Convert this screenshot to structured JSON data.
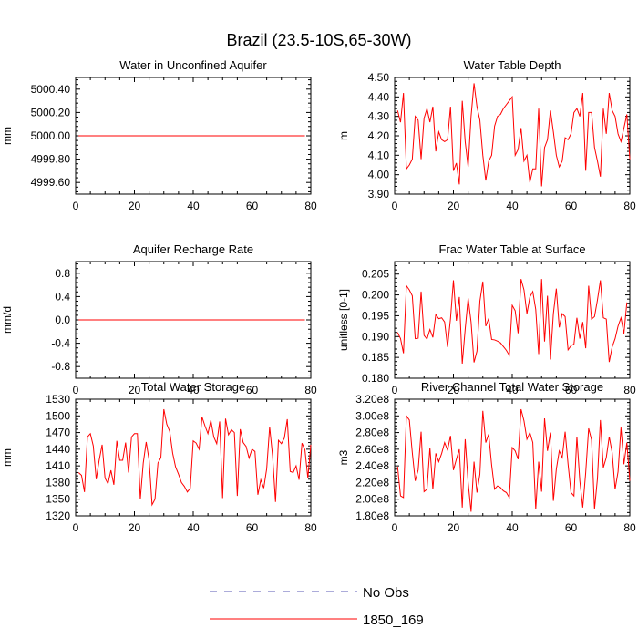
{
  "main_title": "Brazil (23.5-10S,65-30W)",
  "colors": {
    "series": "#ff0000",
    "noobs": "#5a5ab4"
  },
  "legend": {
    "no_obs": "No Obs",
    "run": "1850_169"
  },
  "chart_data": [
    {
      "type": "line",
      "title": "Water in Unconfined Aquifer",
      "ylabel": "mm",
      "xlim": [
        0,
        80
      ],
      "ylim": [
        4999.5,
        5000.5
      ],
      "xticks": [
        0,
        20,
        40,
        60,
        80
      ],
      "yticks": [
        4999.6,
        4999.8,
        5000.0,
        5000.2,
        5000.4
      ],
      "ytick_labels": [
        "4999.60",
        "4999.80",
        "5000.00",
        "5000.20",
        "5000.40"
      ],
      "series": [
        {
          "name": "1850_169",
          "x_start": 1,
          "values": [
            5000,
            5000,
            5000,
            5000,
            5000,
            5000,
            5000,
            5000,
            5000,
            5000,
            5000,
            5000,
            5000,
            5000,
            5000,
            5000,
            5000,
            5000,
            5000,
            5000,
            5000,
            5000,
            5000,
            5000,
            5000,
            5000,
            5000,
            5000,
            5000,
            5000,
            5000,
            5000,
            5000,
            5000,
            5000,
            5000,
            5000,
            5000,
            5000,
            5000,
            5000,
            5000,
            5000,
            5000,
            5000,
            5000,
            5000,
            5000,
            5000,
            5000,
            5000,
            5000,
            5000,
            5000,
            5000,
            5000,
            5000,
            5000,
            5000,
            5000,
            5000,
            5000,
            5000,
            5000,
            5000,
            5000,
            5000,
            5000,
            5000,
            5000,
            5000,
            5000,
            5000,
            5000,
            5000,
            5000,
            5000,
            5000
          ]
        }
      ]
    },
    {
      "type": "line",
      "title": "Water Table Depth",
      "ylabel": "m",
      "xlim": [
        0,
        80
      ],
      "ylim": [
        3.9,
        4.5
      ],
      "xticks": [
        0,
        20,
        40,
        60,
        80
      ],
      "yticks": [
        3.9,
        4.0,
        4.1,
        4.2,
        4.3,
        4.4,
        4.5
      ],
      "ytick_labels": [
        "3.90",
        "4.00",
        "4.10",
        "4.20",
        "4.30",
        "4.40",
        "4.50"
      ],
      "series": [
        {
          "name": "1850_169",
          "x_start": 1,
          "values": [
            4.33,
            4.27,
            4.42,
            4.03,
            4.05,
            4.08,
            4.3,
            4.28,
            4.08,
            4.29,
            4.34,
            4.27,
            4.35,
            4.12,
            4.22,
            4.18,
            4.17,
            4.18,
            4.35,
            4.02,
            4.06,
            3.95,
            4.38,
            4.17,
            4.04,
            4.3,
            4.47,
            4.35,
            4.28,
            4.1,
            3.97,
            4.07,
            4.1,
            4.25,
            4.3,
            4.31,
            4.34,
            4.36,
            4.38,
            4.4,
            4.1,
            4.13,
            4.24,
            4.07,
            4.1,
            3.96,
            4.03,
            4.03,
            4.34,
            3.94,
            4.14,
            4.18,
            4.33,
            4.22,
            4.1,
            4.04,
            4.07,
            4.19,
            4.18,
            4.21,
            4.32,
            4.34,
            4.3,
            4.42,
            4.02,
            4.32,
            4.32,
            4.14,
            4.07,
            3.99,
            4.34,
            4.21,
            4.42,
            4.33,
            4.3,
            4.21,
            4.17,
            4.24,
            4.31,
            4.08
          ]
        }
      ]
    },
    {
      "type": "line",
      "title": "Aquifer Recharge Rate",
      "ylabel": "mm/d",
      "xlim": [
        0,
        80
      ],
      "ylim": [
        -1.0,
        1.0
      ],
      "xticks": [
        0,
        20,
        40,
        60,
        80
      ],
      "yticks": [
        -0.8,
        -0.4,
        0.0,
        0.4,
        0.8
      ],
      "ytick_labels": [
        "-0.8",
        "-0.4",
        "0.0",
        "0.4",
        "0.8"
      ],
      "series": [
        {
          "name": "1850_169",
          "x_start": 1,
          "values": [
            0,
            0,
            0,
            0,
            0,
            0,
            0,
            0,
            0,
            0,
            0,
            0,
            0,
            0,
            0,
            0,
            0,
            0,
            0,
            0,
            0,
            0,
            0,
            0,
            0,
            0,
            0,
            0,
            0,
            0,
            0,
            0,
            0,
            0,
            0,
            0,
            0,
            0,
            0,
            0,
            0,
            0,
            0,
            0,
            0,
            0,
            0,
            0,
            0,
            0,
            0,
            0,
            0,
            0,
            0,
            0,
            0,
            0,
            0,
            0,
            0,
            0,
            0,
            0,
            0,
            0,
            0,
            0,
            0,
            0,
            0,
            0,
            0,
            0,
            0,
            0,
            0,
            0
          ]
        }
      ]
    },
    {
      "type": "line",
      "title": "Frac Water Table at Surface",
      "ylabel": "unitless [0-1]",
      "xlim": [
        0,
        80
      ],
      "ylim": [
        0.18,
        0.208
      ],
      "xticks": [
        0,
        20,
        40,
        60,
        80
      ],
      "yticks": [
        0.18,
        0.185,
        0.19,
        0.195,
        0.2,
        0.205
      ],
      "ytick_labels": [
        "0.180",
        "0.185",
        "0.190",
        "0.195",
        "0.200",
        "0.205"
      ],
      "series": [
        {
          "name": "1850_169",
          "x_start": 1,
          "values": [
            0.191,
            0.1895,
            0.186,
            0.2022,
            0.2012,
            0.1998,
            0.1895,
            0.1896,
            0.2008,
            0.1903,
            0.1894,
            0.1917,
            0.1898,
            0.1953,
            0.1943,
            0.1945,
            0.1935,
            0.1875,
            0.1943,
            0.2035,
            0.1938,
            0.1995,
            0.1835,
            0.1918,
            0.1992,
            0.1935,
            0.1838,
            0.1865,
            0.1985,
            0.2032,
            0.1925,
            0.1943,
            0.1893,
            0.1892,
            0.1889,
            0.1885,
            0.1876,
            0.1867,
            0.1855,
            0.1975,
            0.1962,
            0.1908,
            0.2038,
            0.2012,
            0.1955,
            0.1995,
            0.2008,
            0.1965,
            0.1858,
            0.2038,
            0.1888,
            0.1998,
            0.1845,
            0.1955,
            0.2015,
            0.1922,
            0.1955,
            0.1948,
            0.1868,
            0.1878,
            0.1882,
            0.1945,
            0.1895,
            0.1935,
            0.1872,
            0.2022,
            0.1942,
            0.1948,
            0.1988,
            0.2035,
            0.1945,
            0.1942,
            0.1839,
            0.1875,
            0.1895,
            0.1925,
            0.1945,
            0.1907,
            0.1982
          ]
        }
      ]
    },
    {
      "type": "line",
      "title": "Total Water Storage",
      "ylabel": "mm",
      "xlim": [
        0,
        80
      ],
      "ylim": [
        1320,
        1530
      ],
      "xticks": [
        0,
        20,
        40,
        60,
        80
      ],
      "yticks": [
        1320,
        1350,
        1380,
        1410,
        1440,
        1470,
        1500,
        1530
      ],
      "ytick_labels": [
        "1320",
        "1350",
        "1380",
        "1410",
        "1440",
        "1470",
        "1500",
        "1530"
      ],
      "series": [
        {
          "name": "1850_169",
          "x_start": 1,
          "values": [
            1398,
            1393,
            1363,
            1462,
            1468,
            1446,
            1386,
            1420,
            1448,
            1388,
            1378,
            1402,
            1376,
            1455,
            1420,
            1420,
            1452,
            1398,
            1462,
            1468,
            1468,
            1350,
            1415,
            1453,
            1420,
            1340,
            1350,
            1415,
            1425,
            1512,
            1485,
            1472,
            1433,
            1408,
            1395,
            1380,
            1373,
            1363,
            1370,
            1455,
            1451,
            1440,
            1498,
            1482,
            1468,
            1492,
            1462,
            1450,
            1490,
            1352,
            1495,
            1466,
            1475,
            1470,
            1356,
            1476,
            1452,
            1445,
            1424,
            1440,
            1436,
            1358,
            1385,
            1370,
            1405,
            1480,
            1428,
            1345,
            1456,
            1450,
            1460,
            1494,
            1400,
            1398,
            1410,
            1385,
            1451,
            1439,
            1388,
            1448
          ]
        }
      ]
    },
    {
      "type": "line",
      "title": "River Channel Total Water Storage",
      "ylabel": "m3",
      "xlim": [
        0,
        80
      ],
      "ylim": [
        180000000,
        320000000
      ],
      "xticks": [
        0,
        20,
        40,
        60,
        80
      ],
      "yticks": [
        180000000,
        200000000,
        220000000,
        240000000,
        260000000,
        280000000,
        300000000,
        320000000
      ],
      "ytick_labels": [
        "1.80e8",
        "2.00e8",
        "2.20e8",
        "2.40e8",
        "2.60e8",
        "2.80e8",
        "3.00e8",
        "3.20e8"
      ],
      "series": [
        {
          "name": "1850_169",
          "x_start": 1,
          "values": [
            239000000,
            204000000,
            202000000,
            300000000,
            295000000,
            256000000,
            222000000,
            235000000,
            281000000,
            209000000,
            212000000,
            262000000,
            212000000,
            255000000,
            245000000,
            255000000,
            268000000,
            259000000,
            276000000,
            235000000,
            248000000,
            260000000,
            190000000,
            272000000,
            220000000,
            185000000,
            245000000,
            208000000,
            230000000,
            306000000,
            268000000,
            278000000,
            241000000,
            212000000,
            216000000,
            214000000,
            210000000,
            208000000,
            202000000,
            262000000,
            258000000,
            248000000,
            308000000,
            294000000,
            272000000,
            280000000,
            268000000,
            188000000,
            245000000,
            209000000,
            297000000,
            258000000,
            280000000,
            198000000,
            236000000,
            258000000,
            250000000,
            281000000,
            242000000,
            208000000,
            204000000,
            275000000,
            222000000,
            190000000,
            232000000,
            285000000,
            271000000,
            188000000,
            225000000,
            295000000,
            238000000,
            250000000,
            275000000,
            256000000,
            212000000,
            233000000,
            286000000,
            242000000,
            268000000,
            222000000
          ]
        }
      ]
    }
  ]
}
